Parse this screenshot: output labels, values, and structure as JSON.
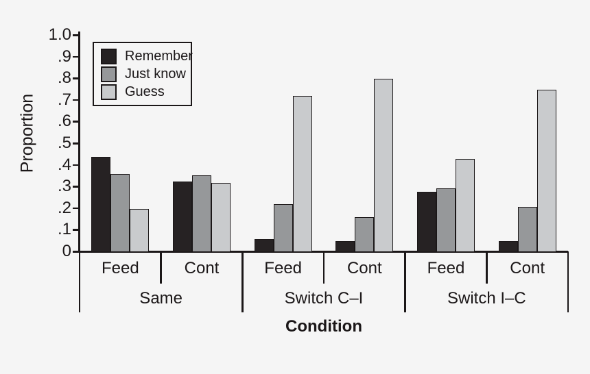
{
  "chart_data": {
    "type": "bar",
    "title": "",
    "xlabel": "Condition",
    "ylabel": "Proportion",
    "ylim": [
      0,
      1.0
    ],
    "grid": false,
    "yticks": [
      {
        "label": "1.0",
        "value": 1.0
      },
      {
        "label": ".9",
        "value": 0.9
      },
      {
        "label": ".8",
        "value": 0.8
      },
      {
        "label": ".7",
        "value": 0.7
      },
      {
        "label": ".6",
        "value": 0.6
      },
      {
        "label": ".5",
        "value": 0.5
      },
      {
        "label": ".4",
        "value": 0.4
      },
      {
        "label": ".3",
        "value": 0.3
      },
      {
        "label": ".2",
        "value": 0.2
      },
      {
        "label": ".1",
        "value": 0.1
      },
      {
        "label": "0",
        "value": 0.0
      }
    ],
    "groups": [
      {
        "label": "Same",
        "conditions": [
          "Feed",
          "Cont"
        ]
      },
      {
        "label": "Switch C–I",
        "conditions": [
          "Feed",
          "Cont"
        ]
      },
      {
        "label": "Switch I–C",
        "conditions": [
          "Feed",
          "Cont"
        ]
      }
    ],
    "series": [
      {
        "name": "Remember",
        "color": "#262223",
        "values": [
          0.44,
          0.325,
          0.06,
          0.05,
          0.28,
          0.05
        ]
      },
      {
        "name": "Just know",
        "color": "#96989a",
        "values": [
          0.36,
          0.355,
          0.22,
          0.16,
          0.295,
          0.21
        ]
      },
      {
        "name": "Guess",
        "color": "#c9cbcd",
        "values": [
          0.2,
          0.32,
          0.72,
          0.8,
          0.43,
          0.75
        ]
      }
    ],
    "legend": {
      "position": "upper-left",
      "entries": [
        {
          "label": "Remember",
          "color": "#262223"
        },
        {
          "label": "Just know",
          "color": "#96989a"
        },
        {
          "label": "Guess",
          "color": "#c9cbcd"
        }
      ]
    },
    "colors": {
      "axis": "#1b1718",
      "bar_border": "#1b1718",
      "background": "#f5f5f5"
    }
  }
}
